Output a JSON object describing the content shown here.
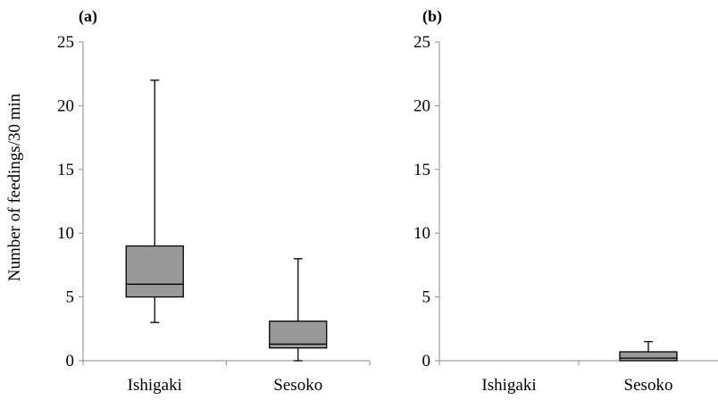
{
  "chart_data": [
    {
      "type": "box",
      "panel_label": "(a)",
      "ylabel": "Number of feedings/30 min",
      "ylim": [
        0,
        25
      ],
      "yticks": [
        "0",
        "5",
        "10",
        "15",
        "20",
        "25"
      ],
      "categories": [
        "Ishigaki",
        "Sesoko"
      ],
      "boxes": [
        {
          "category": "Ishigaki",
          "min": 3,
          "q1": 5,
          "median": 6,
          "q3": 9,
          "max": 22
        },
        {
          "category": "Sesoko",
          "min": 0,
          "q1": 1,
          "median": 1.3,
          "q3": 3.1,
          "max": 8
        }
      ],
      "box_color": "#999999"
    },
    {
      "type": "box",
      "panel_label": "(b)",
      "ylabel": "",
      "ylim": [
        0,
        25
      ],
      "yticks": [
        "0",
        "5",
        "10",
        "15",
        "20",
        "25"
      ],
      "categories": [
        "Ishigaki",
        "Sesoko"
      ],
      "boxes": [
        {
          "category": "Ishigaki",
          "min": 0,
          "q1": 0,
          "median": 0,
          "q3": 0,
          "max": 0
        },
        {
          "category": "Sesoko",
          "min": 0,
          "q1": 0,
          "median": 0.2,
          "q3": 0.7,
          "max": 1.5
        }
      ],
      "box_color": "#999999"
    }
  ]
}
